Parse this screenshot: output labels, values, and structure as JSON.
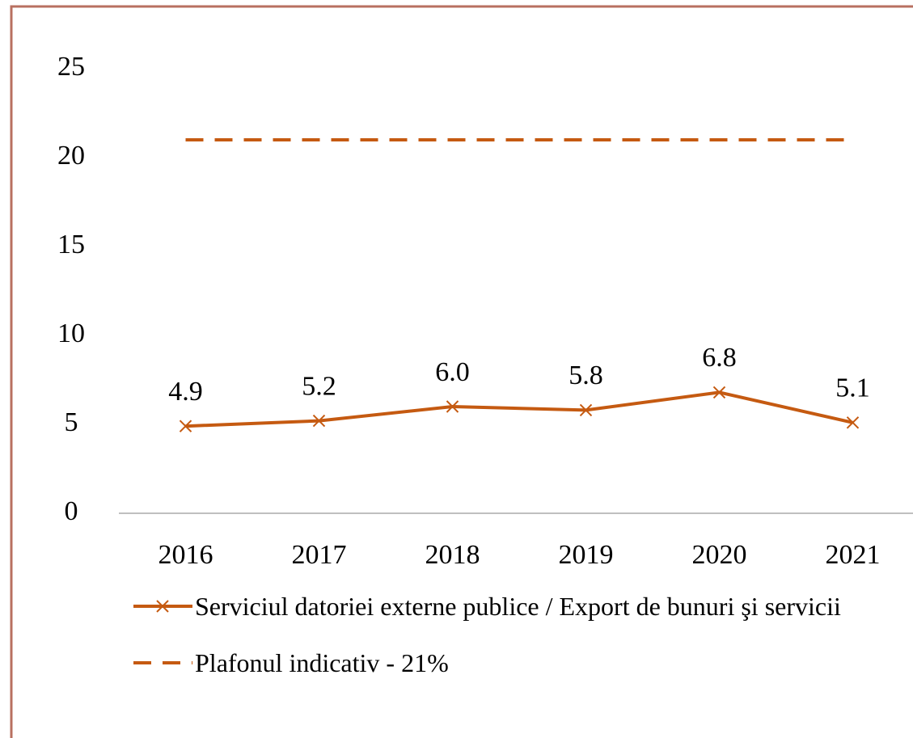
{
  "chart_data": {
    "type": "line",
    "categories": [
      "2016",
      "2017",
      "2018",
      "2019",
      "2020",
      "2021"
    ],
    "series": [
      {
        "name": "Serviciul datoriei externe publice / Export de bunuri şi servicii",
        "color": "#c55a11",
        "values": [
          4.9,
          5.2,
          6.0,
          5.8,
          6.8,
          5.1
        ],
        "value_labels": [
          "4.9",
          "5.2",
          "6.0",
          "5.8",
          "6.8",
          "5.1"
        ],
        "marker": "x",
        "dash": false
      },
      {
        "name": "Plafonul indicativ - 21%",
        "color": "#c55a11",
        "values": [
          21,
          21,
          21,
          21,
          21,
          21
        ],
        "marker": null,
        "dash": true
      }
    ],
    "ylim": [
      0,
      25
    ],
    "yticks": [
      0,
      5,
      10,
      15,
      20,
      25
    ],
    "grid": false,
    "legend": "bottom"
  }
}
